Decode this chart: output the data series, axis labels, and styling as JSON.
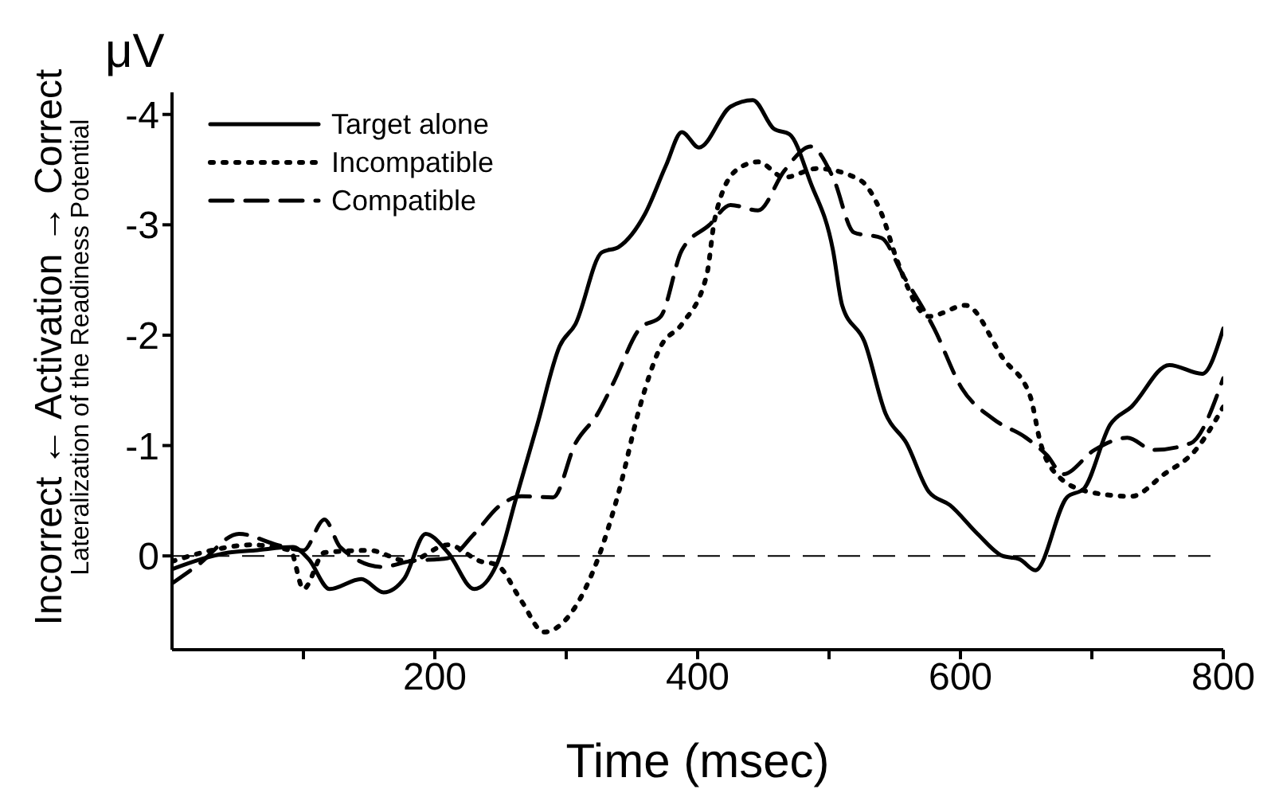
{
  "chart_data": {
    "type": "line",
    "xlabel": "Time (msec)",
    "ylabel": "Incorrect ← Activation → Correct",
    "annotations": [
      "μV",
      "Lateralization of the Readiness Potential"
    ],
    "xlim": [
      0,
      800
    ],
    "xticks": [
      {
        "value": 100,
        "label": null
      },
      200,
      {
        "value": 300,
        "label": null
      },
      400,
      {
        "value": 500,
        "label": null
      },
      600,
      {
        "value": 700,
        "label": null
      },
      800
    ],
    "ylim": [
      0.85,
      -4.2
    ],
    "yticks": [
      -4,
      -3,
      -2,
      -1,
      0
    ],
    "grid": false,
    "legend": "top left",
    "marker": "none",
    "ref_lines": [
      {
        "axis": "y",
        "value": 0,
        "label": null,
        "line_style": "dashed",
        "color": "#000000"
      }
    ],
    "series": [
      {
        "name": "Target alone",
        "color": "#000000",
        "line_style": "solid",
        "x": [
          0,
          22,
          43,
          63,
          92,
          104,
          120,
          144,
          161,
          177,
          193,
          210,
          230,
          247,
          262,
          278,
          295,
          307,
          327,
          340,
          360,
          376,
          388,
          401,
          425,
          442,
          458,
          470,
          486,
          503,
          510,
          527,
          543,
          559,
          576,
          592,
          613,
          632,
          645,
          657,
          681,
          694,
          714,
          730,
          759,
          784,
          800
        ],
        "values": [
          0.12,
          0.03,
          -0.03,
          -0.05,
          -0.08,
          0.03,
          0.3,
          0.21,
          0.33,
          0.2,
          -0.2,
          -0.03,
          0.3,
          0.08,
          -0.53,
          -1.19,
          -1.9,
          -2.1,
          -2.75,
          -2.8,
          -3.1,
          -3.54,
          -3.84,
          -3.7,
          -4.07,
          -4.13,
          -3.87,
          -3.82,
          -3.38,
          -2.77,
          -2.27,
          -1.94,
          -1.29,
          -1.02,
          -0.58,
          -0.46,
          -0.2,
          0,
          0.03,
          0.13,
          -0.53,
          -0.61,
          -1.19,
          -1.35,
          -1.73,
          -1.65,
          -2.06
        ]
      },
      {
        "name": "Incompatible",
        "color": "#000000",
        "line_style": "dotted",
        "x": [
          0,
          30,
          60,
          90,
          100,
          116,
          150,
          180,
          210,
          235,
          247,
          266,
          283,
          307,
          324,
          340,
          356,
          372,
          388,
          407,
          413,
          430,
          446,
          466,
          491,
          523,
          540,
          552,
          576,
          604,
          633,
          653,
          661,
          673,
          698,
          730,
          755,
          779,
          800
        ],
        "values": [
          0.05,
          -0.05,
          -0.1,
          -0.05,
          0.3,
          -0.03,
          -0.05,
          0.05,
          -0.1,
          0.05,
          0.08,
          0.41,
          0.69,
          0.46,
          0.03,
          -0.58,
          -1.35,
          -1.9,
          -2.1,
          -2.55,
          -3.05,
          -3.5,
          -3.57,
          -3.43,
          -3.51,
          -3.41,
          -3.1,
          -2.67,
          -2.17,
          -2.27,
          -1.78,
          -1.45,
          -1.02,
          -0.74,
          -0.58,
          -0.54,
          -0.74,
          -0.96,
          -1.35
        ]
      },
      {
        "name": "Compatible",
        "color": "#000000",
        "line_style": "dashed",
        "x": [
          0,
          20,
          51,
          80,
          100,
          116,
          128,
          160,
          180,
          210,
          230,
          250,
          266,
          290,
          307,
          324,
          336,
          356,
          372,
          388,
          409,
          425,
          446,
          466,
          486,
          503,
          519,
          540,
          556,
          580,
          601,
          625,
          650,
          666,
          678,
          702,
          727,
          747,
          775,
          800
        ],
        "values": [
          0.25,
          0.08,
          -0.2,
          -0.1,
          -0.05,
          -0.33,
          -0.08,
          0.1,
          0.05,
          0.02,
          -0.2,
          -0.46,
          -0.54,
          -0.53,
          -1.02,
          -1.29,
          -1.57,
          -2.06,
          -2.17,
          -2.77,
          -3.0,
          -3.18,
          -3.13,
          -3.49,
          -3.71,
          -3.43,
          -2.93,
          -2.88,
          -2.55,
          -2.06,
          -1.52,
          -1.24,
          -1.07,
          -0.91,
          -0.74,
          -0.96,
          -1.07,
          -0.96,
          -1.02,
          -1.61
        ]
      }
    ]
  }
}
